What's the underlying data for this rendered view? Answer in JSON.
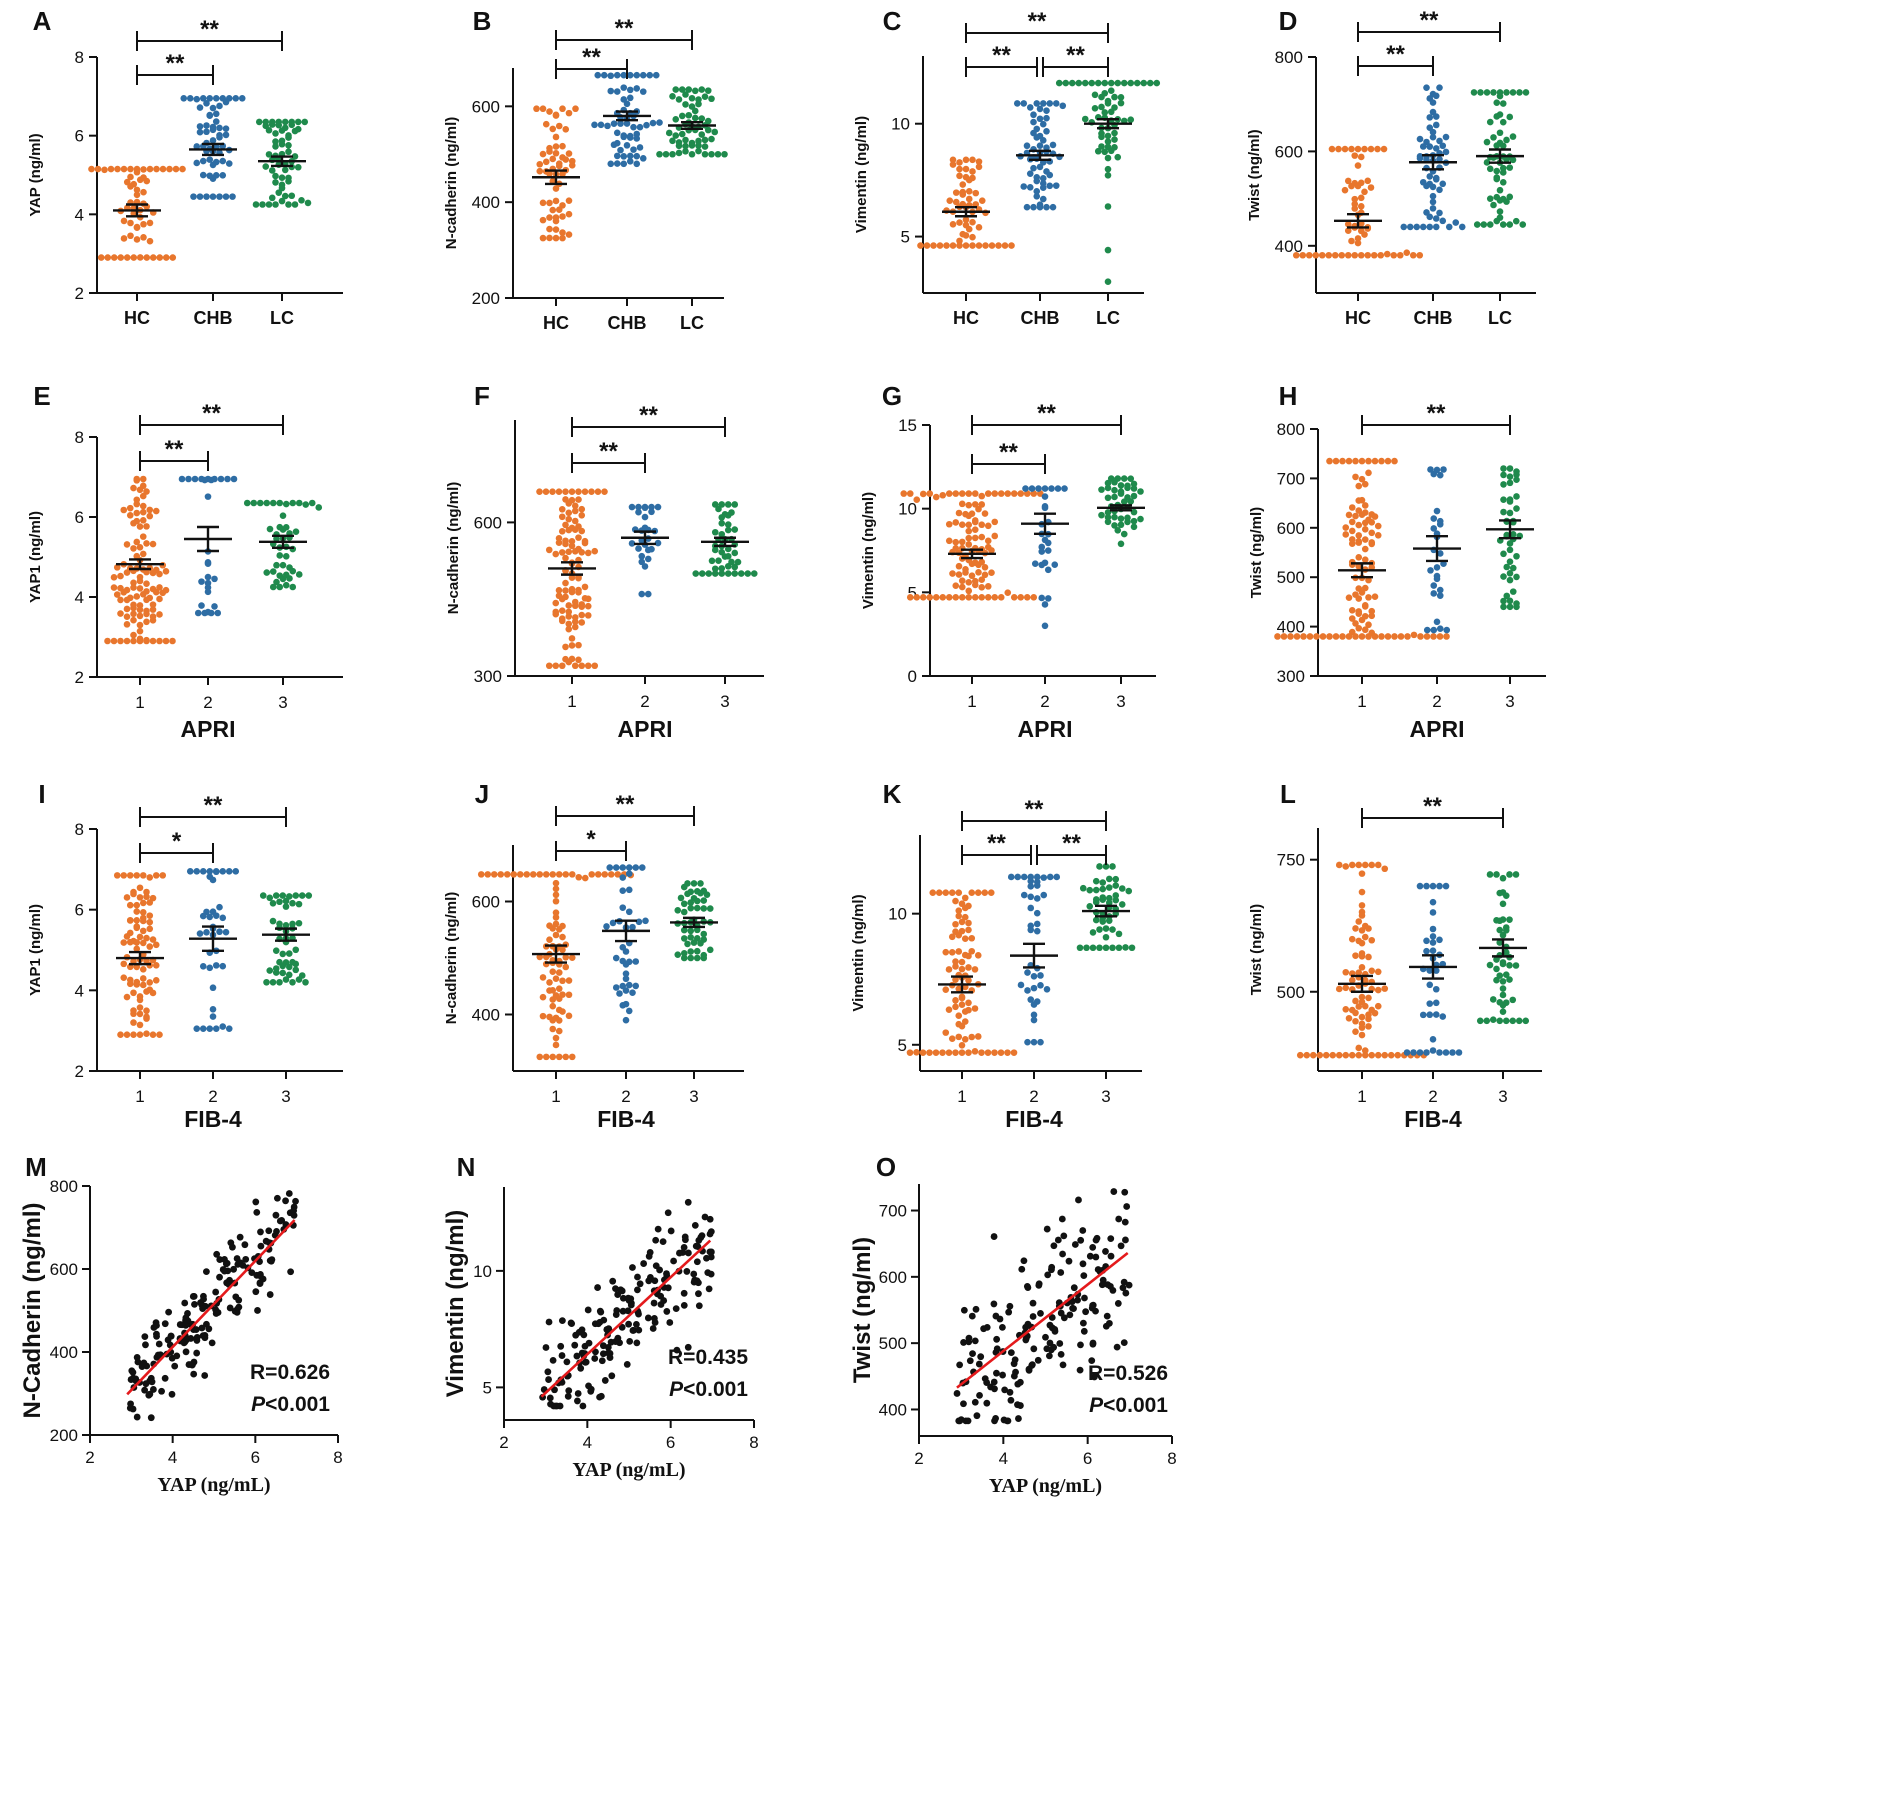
{
  "colors": {
    "group1": "#E8762D",
    "group2": "#2E6DA4",
    "group3": "#1F8A4C",
    "fit": "#E41A1C",
    "ink": "#111111"
  },
  "chart_data": [
    {
      "id": "A",
      "type": "scatter",
      "subtype": "dot-plot-mean-sem",
      "categories": [
        "HC",
        "CHB",
        "LC"
      ],
      "xlabel": "",
      "ylabel": "YAP (ng/ml)",
      "ylim": [
        2,
        8
      ],
      "yticks": [
        2,
        4,
        6,
        8
      ],
      "groups": [
        {
          "n": 60,
          "mean": 4.1,
          "sem": 0.15,
          "min": 2.9,
          "max": 5.15
        },
        {
          "n": 60,
          "mean": 5.65,
          "sem": 0.14,
          "min": 4.45,
          "max": 6.95
        },
        {
          "n": 60,
          "mean": 5.35,
          "sem": 0.12,
          "min": 4.25,
          "max": 6.35
        }
      ],
      "comparisons": [
        {
          "from": 0,
          "to": 1,
          "label": "**"
        },
        {
          "from": 0,
          "to": 2,
          "label": "**"
        }
      ]
    },
    {
      "id": "B",
      "type": "scatter",
      "subtype": "dot-plot-mean-sem",
      "categories": [
        "HC",
        "CHB",
        "LC"
      ],
      "xlabel": "",
      "ylabel": "N-cadherin (ng/ml)",
      "ylim": [
        200,
        680
      ],
      "yticks": [
        200,
        400,
        600
      ],
      "groups": [
        {
          "n": 60,
          "mean": 452,
          "sem": 14,
          "min": 325,
          "max": 595
        },
        {
          "n": 60,
          "mean": 580,
          "sem": 9,
          "min": 480,
          "max": 665
        },
        {
          "n": 60,
          "mean": 560,
          "sem": 7,
          "min": 500,
          "max": 635
        }
      ],
      "comparisons": [
        {
          "from": 0,
          "to": 1,
          "label": "**"
        },
        {
          "from": 0,
          "to": 2,
          "label": "**"
        }
      ]
    },
    {
      "id": "C",
      "type": "scatter",
      "subtype": "dot-plot-mean-sem",
      "categories": [
        "HC",
        "CHB",
        "LC"
      ],
      "xlabel": "",
      "ylabel": "Vimentin (ng/ml)",
      "ylim": [
        2.5,
        13
      ],
      "yticks": [
        5,
        10
      ],
      "groups": [
        {
          "n": 60,
          "mean": 6.1,
          "sem": 0.2,
          "min": 4.6,
          "max": 8.4
        },
        {
          "n": 60,
          "mean": 8.6,
          "sem": 0.2,
          "min": 6.3,
          "max": 10.9
        },
        {
          "n": 60,
          "mean": 10.0,
          "sem": 0.2,
          "min": 3.0,
          "max": 11.8
        }
      ],
      "comparisons": [
        {
          "from": 0,
          "to": 1,
          "label": "**"
        },
        {
          "from": 1,
          "to": 2,
          "label": "**"
        },
        {
          "from": 0,
          "to": 2,
          "label": "**"
        }
      ]
    },
    {
      "id": "D",
      "type": "scatter",
      "subtype": "dot-plot-mean-sem",
      "categories": [
        "HC",
        "CHB",
        "LC"
      ],
      "xlabel": "",
      "ylabel": "Twist (ng/ml)",
      "ylim": [
        300,
        800
      ],
      "yticks": [
        400,
        600,
        800
      ],
      "groups": [
        {
          "n": 60,
          "mean": 453,
          "sem": 14,
          "min": 380,
          "max": 605
        },
        {
          "n": 60,
          "mean": 577,
          "sem": 15,
          "min": 440,
          "max": 735
        },
        {
          "n": 60,
          "mean": 590,
          "sem": 14,
          "min": 445,
          "max": 725
        }
      ],
      "comparisons": [
        {
          "from": 0,
          "to": 1,
          "label": "**"
        },
        {
          "from": 0,
          "to": 2,
          "label": "**"
        }
      ]
    },
    {
      "id": "E",
      "type": "scatter",
      "subtype": "dot-plot-mean-sem",
      "categories": [
        "1",
        "2",
        "3"
      ],
      "xlabel": "APRI",
      "ylabel": "YAP1 (ng/ml)",
      "ylim": [
        2,
        8
      ],
      "yticks": [
        2,
        4,
        6,
        8
      ],
      "groups": [
        {
          "n": 110,
          "mean": 4.82,
          "sem": 0.12,
          "min": 2.9,
          "max": 6.95
        },
        {
          "n": 28,
          "mean": 5.45,
          "sem": 0.3,
          "min": 3.6,
          "max": 6.95
        },
        {
          "n": 45,
          "mean": 5.38,
          "sem": 0.15,
          "min": 4.25,
          "max": 6.35
        }
      ],
      "comparisons": [
        {
          "from": 0,
          "to": 1,
          "label": "**"
        },
        {
          "from": 0,
          "to": 2,
          "label": "**"
        }
      ]
    },
    {
      "id": "F",
      "type": "scatter",
      "subtype": "dot-plot-mean-sem",
      "categories": [
        "1",
        "2",
        "3"
      ],
      "xlabel": "APRI",
      "ylabel": "N-cadherin (ng/ml)",
      "ylim": [
        300,
        800
      ],
      "yticks": [
        300,
        600
      ],
      "groups": [
        {
          "n": 110,
          "mean": 510,
          "sem": 12,
          "min": 320,
          "max": 660
        },
        {
          "n": 28,
          "mean": 570,
          "sem": 12,
          "min": 460,
          "max": 630
        },
        {
          "n": 45,
          "mean": 562,
          "sem": 8,
          "min": 500,
          "max": 635
        }
      ],
      "comparisons": [
        {
          "from": 0,
          "to": 1,
          "label": "**"
        },
        {
          "from": 0,
          "to": 2,
          "label": "**"
        }
      ]
    },
    {
      "id": "G",
      "type": "scatter",
      "subtype": "dot-plot-mean-sem",
      "categories": [
        "1",
        "2",
        "3"
      ],
      "xlabel": "APRI",
      "ylabel": "Vimentin (ng/ml)",
      "ylim": [
        0,
        15
      ],
      "yticks": [
        0,
        5,
        10,
        15
      ],
      "groups": [
        {
          "n": 110,
          "mean": 7.3,
          "sem": 0.25,
          "min": 4.7,
          "max": 10.9
        },
        {
          "n": 28,
          "mean": 9.1,
          "sem": 0.6,
          "min": 3.0,
          "max": 11.2
        },
        {
          "n": 45,
          "mean": 10.05,
          "sem": 0.15,
          "min": 7.9,
          "max": 11.8
        }
      ],
      "comparisons": [
        {
          "from": 0,
          "to": 1,
          "label": "**"
        },
        {
          "from": 0,
          "to": 2,
          "label": "**"
        }
      ]
    },
    {
      "id": "H",
      "type": "scatter",
      "subtype": "dot-plot-mean-sem",
      "categories": [
        "1",
        "2",
        "3"
      ],
      "xlabel": "APRI",
      "ylabel": "Twist (ng/ml)",
      "ylim": [
        300,
        800
      ],
      "yticks": [
        300,
        400,
        500,
        600,
        700,
        800
      ],
      "groups": [
        {
          "n": 110,
          "mean": 514,
          "sem": 14,
          "min": 380,
          "max": 735
        },
        {
          "n": 28,
          "mean": 558,
          "sem": 25,
          "min": 393,
          "max": 718
        },
        {
          "n": 45,
          "mean": 597,
          "sem": 18,
          "min": 440,
          "max": 720
        }
      ],
      "comparisons": [
        {
          "from": 0,
          "to": 2,
          "label": "**"
        }
      ]
    },
    {
      "id": "I",
      "type": "scatter",
      "subtype": "dot-plot-mean-sem",
      "categories": [
        "1",
        "2",
        "3"
      ],
      "xlabel": "FIB-4",
      "ylabel": "YAP1 (ng/ml)",
      "ylim": [
        2,
        8
      ],
      "yticks": [
        2,
        4,
        6,
        8
      ],
      "groups": [
        {
          "n": 90,
          "mean": 4.8,
          "sem": 0.15,
          "min": 2.9,
          "max": 6.85
        },
        {
          "n": 40,
          "mean": 5.28,
          "sem": 0.3,
          "min": 3.05,
          "max": 6.95
        },
        {
          "n": 50,
          "mean": 5.38,
          "sem": 0.15,
          "min": 4.2,
          "max": 6.35
        }
      ],
      "comparisons": [
        {
          "from": 0,
          "to": 1,
          "label": "*"
        },
        {
          "from": 0,
          "to": 2,
          "label": "**"
        }
      ]
    },
    {
      "id": "J",
      "type": "scatter",
      "subtype": "dot-plot-mean-sem",
      "categories": [
        "1",
        "2",
        "3"
      ],
      "xlabel": "FIB-4",
      "ylabel": "N-cadherin (ng/ml)",
      "ylim": [
        300,
        700
      ],
      "yticks": [
        400,
        600
      ],
      "groups": [
        {
          "n": 90,
          "mean": 507,
          "sem": 15,
          "min": 325,
          "max": 648
        },
        {
          "n": 40,
          "mean": 548,
          "sem": 18,
          "min": 390,
          "max": 660
        },
        {
          "n": 50,
          "mean": 563,
          "sem": 8,
          "min": 500,
          "max": 632
        }
      ],
      "comparisons": [
        {
          "from": 0,
          "to": 1,
          "label": "*"
        },
        {
          "from": 0,
          "to": 2,
          "label": "**"
        }
      ]
    },
    {
      "id": "K",
      "type": "scatter",
      "subtype": "dot-plot-mean-sem",
      "categories": [
        "1",
        "2",
        "3"
      ],
      "xlabel": "FIB-4",
      "ylabel": "Vimentin (ng/ml)",
      "ylim": [
        4,
        13
      ],
      "yticks": [
        5,
        10
      ],
      "groups": [
        {
          "n": 90,
          "mean": 7.3,
          "sem": 0.3,
          "min": 4.7,
          "max": 10.8
        },
        {
          "n": 40,
          "mean": 8.4,
          "sem": 0.45,
          "min": 5.1,
          "max": 11.4
        },
        {
          "n": 50,
          "mean": 10.1,
          "sem": 0.2,
          "min": 8.7,
          "max": 11.8
        }
      ],
      "comparisons": [
        {
          "from": 0,
          "to": 1,
          "label": "**"
        },
        {
          "from": 1,
          "to": 2,
          "label": "**"
        },
        {
          "from": 0,
          "to": 2,
          "label": "**"
        }
      ]
    },
    {
      "id": "L",
      "type": "scatter",
      "subtype": "dot-plot-mean-sem",
      "categories": [
        "1",
        "2",
        "3"
      ],
      "xlabel": "FIB-4",
      "ylabel": "Twist (ng/ml)",
      "ylim": [
        350,
        810
      ],
      "yticks": [
        500,
        750
      ],
      "groups": [
        {
          "n": 90,
          "mean": 515,
          "sem": 15,
          "min": 380,
          "max": 740
        },
        {
          "n": 40,
          "mean": 547,
          "sem": 22,
          "min": 385,
          "max": 700
        },
        {
          "n": 50,
          "mean": 583,
          "sem": 16,
          "min": 445,
          "max": 722
        }
      ],
      "comparisons": [
        {
          "from": 0,
          "to": 2,
          "label": "**"
        }
      ]
    },
    {
      "id": "M",
      "type": "scatter",
      "subtype": "correlation",
      "xlabel": "YAP (ng/mL)",
      "ylabel": "N-Cadherin (ng/ml)",
      "xlim": [
        2,
        8
      ],
      "ylim": [
        200,
        800
      ],
      "xticks": [
        2,
        4,
        6,
        8
      ],
      "yticks": [
        200,
        400,
        600,
        800
      ],
      "n": 180,
      "xrange": [
        2.9,
        7.0
      ],
      "fit": {
        "x": [
          2.9,
          6.95
        ],
        "y": [
          298,
          718
        ]
      },
      "noise": 55,
      "R": "R=0.626",
      "P_prefix": "P",
      "P_suffix": "<0.001"
    },
    {
      "id": "N",
      "type": "scatter",
      "subtype": "correlation",
      "xlabel": "YAP (ng/mL)",
      "ylabel": "Vimentin (ng/ml)",
      "xlim": [
        2,
        8
      ],
      "ylim": [
        3.6,
        13.6
      ],
      "xticks": [
        2,
        4,
        6,
        8
      ],
      "yticks": [
        5,
        10
      ],
      "n": 180,
      "xrange": [
        2.9,
        7.0
      ],
      "fit": {
        "x": [
          2.9,
          6.95
        ],
        "y": [
          4.6,
          11.3
        ]
      },
      "noise": 1.3,
      "R": "R=0.435",
      "P_prefix": "P",
      "P_suffix": "<0.001"
    },
    {
      "id": "O",
      "type": "scatter",
      "subtype": "correlation",
      "xlabel": "YAP (ng/mL)",
      "ylabel": "Twist (ng/ml)",
      "xlim": [
        2,
        8
      ],
      "ylim": [
        360,
        740
      ],
      "xticks": [
        2,
        4,
        6,
        8
      ],
      "yticks": [
        400,
        500,
        600,
        700
      ],
      "n": 180,
      "xrange": [
        2.9,
        7.0
      ],
      "fit": {
        "x": [
          2.9,
          6.95
        ],
        "y": [
          433,
          636
        ]
      },
      "noise": 62,
      "R": "R=0.526",
      "P_prefix": "P",
      "P_suffix": "<0.001"
    }
  ]
}
